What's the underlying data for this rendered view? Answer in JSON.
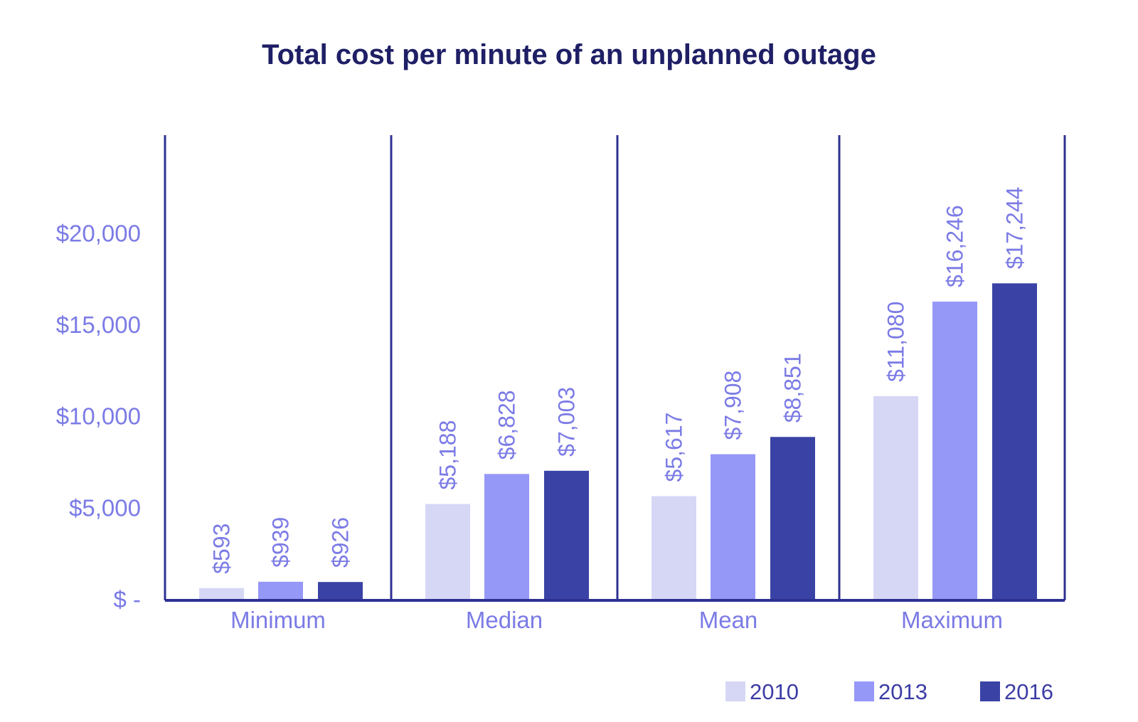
{
  "chart_data": {
    "type": "bar",
    "title": "Total cost per minute of an unplanned outage",
    "xlabel": "",
    "ylabel": "",
    "categories": [
      "Minimum",
      "Median",
      "Mean",
      "Maximum"
    ],
    "series": [
      {
        "name": "2010",
        "color": "#d6d7f5",
        "values": [
          593,
          5188,
          5617,
          11080
        ],
        "labels": [
          "$593",
          "$5,188",
          "$5,617",
          "$11,080"
        ]
      },
      {
        "name": "2013",
        "color": "#9598f7",
        "values": [
          939,
          6828,
          7908,
          16246
        ],
        "labels": [
          "$939",
          "$6,828",
          "$7,908",
          "$16,246"
        ]
      },
      {
        "name": "2016",
        "color": "#3a43a5",
        "values": [
          926,
          7003,
          8851,
          17244
        ],
        "labels": [
          "$926",
          "$7,003",
          "$8,851",
          "$17,244"
        ]
      }
    ],
    "ylim": [
      0,
      25000
    ],
    "yticks": [
      0,
      5000,
      10000,
      15000,
      20000
    ],
    "ytick_labels": [
      "$ -",
      "$5,000",
      "$10,000",
      "$15,000",
      "$20,000"
    ],
    "grid": false,
    "legend_position": "bottom-right",
    "axis_color": "#2e3192"
  }
}
